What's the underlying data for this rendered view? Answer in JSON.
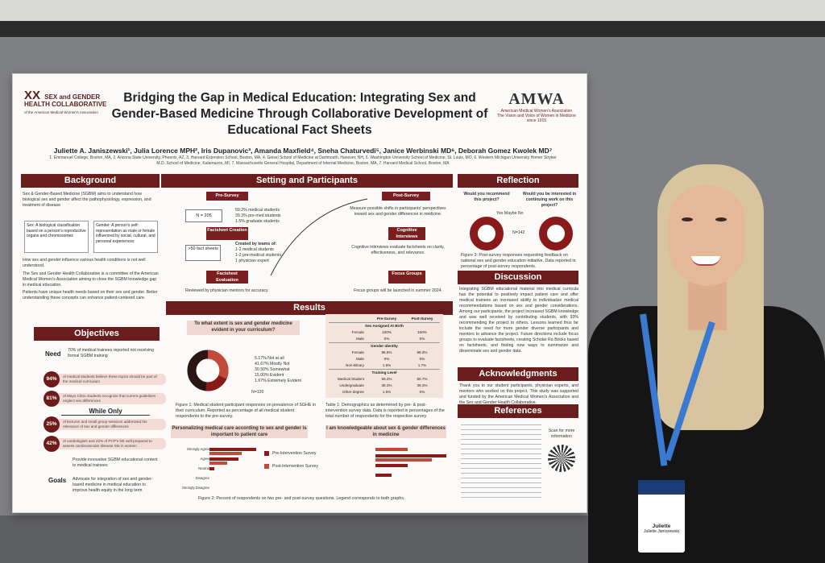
{
  "poster": {
    "logo_left": {
      "mark": "XX",
      "line1": "SEX and GENDER",
      "line2": "HEALTH COLLABORATIVE",
      "line3": "of the American Medical Women's Association"
    },
    "logo_right": {
      "name": "AMWA",
      "line1": "American Medical Women's Association",
      "line2": "The Vision and Voice of Women in Medicine since 1915"
    },
    "title": "Bridging the Gap in Medical Education: Integrating Sex and Gender-Based Medicine Through Collaborative Development of Educational Fact Sheets",
    "authors": "Juliette A. Janiszewski¹, Julia Lorence MPH², Iris Dupanovic³, Amanda Maxfield⁴, Sneha Chaturvedi⁵, Janice Werbinski MD⁶, Deborah Gomez Kwolek MD⁷",
    "affiliations": "1. Emmanuel College, Boston, MA, 2. Arizona State University, Phoenix, AZ, 3. Harvard Extension School, Boston, MA, 4. Geisel School of Medicine at Dartmouth, Hanover, NH, 5. Washington University School of Medicine, St. Louis, MO, 6. Western Michigan University Homer Stryker M.D. School of Medicine, Kalamazoo, MI, 7. Massachusetts General Hospital, Department of Internal Medicine, Boston, MA, 7. Harvard Medical School, Boston, MA",
    "background": {
      "heading": "Background",
      "p1": "Sex & Gender-Based Medicine (SGBM) aims to understand how biological sex and gender affect the pathophysiology, expression, and treatment of disease",
      "sex_def": "Sex: A biological classification based on a person's reproductive organs and chromosomes",
      "gender_def": "Gender: A person's self-representation as male or female influenced by social, cultural, and personal experiences",
      "b1": "How sex and gender influence various health conditions is not well understood.",
      "b2": "The Sex and Gender Health Collaborative is a committee of the American Medical Women's Association aiming to close the SGBM knowledge gap in medical education.",
      "b3": "Patients have unique health needs based on their sex and gender. Better understanding these concepts can enhance patient-centered care."
    },
    "objectives": {
      "heading": "Objectives",
      "need_label": "Need",
      "need_text": "70% of medical trainees reported not receiving formal SGBM training",
      "stats": [
        {
          "value": "94%",
          "text": "of medical students believe these topics should be part of the medical curriculum"
        },
        {
          "value": "81%",
          "text": "of Mayo Clinic students recognize that current guidelines neglect sex differences"
        }
      ],
      "while_only": "While Only",
      "stats2": [
        {
          "value": "25%",
          "text": "of lectures and small group sessions addressed the relevance of sex and gender differences"
        },
        {
          "value": "42%",
          "text": "of cardiologists and 22% of PCP's felt well-prepared to assess cardiovascular disease risk in women"
        }
      ],
      "goals_label": "Goals",
      "goal1": "Provide innovative SGBM educational content to medical trainees",
      "goal2": "Advocate for integration of sex and gender-based medicine in medical education to improve health equity in the long term"
    },
    "setting": {
      "heading": "Setting and Participants",
      "pre_survey": "Pre-Survey",
      "n": "N = 205",
      "pre_stats": [
        "59.2% medical students",
        "39.3% pre-med students",
        "1.5% graduate students"
      ],
      "factsheet_creation": "Factsheet Creation",
      "fact_sheets": ">50 fact sheets",
      "teams_title": "Created by teams of:",
      "teams": [
        "1-2 medical students",
        "1-2 pre-medical students",
        "1 physician expert"
      ],
      "factsheet_eval": "Factsheet Evaluation",
      "reviewed": "Reviewed by physician mentors for accuracy.",
      "post_survey": "Post-Survey",
      "post_text": "Measure possible shifts in participants' perspectives toward sex and gender differences in medicine.",
      "cognitive": "Cognitive Interviews",
      "cognitive_text": "Cognitive interviews evaluate factsheets on clarity, effectiveness, and relevance.",
      "focus": "Focus Groups",
      "focus_text": "Focus groups will be launched in summer 2024."
    },
    "results": {
      "heading": "Results",
      "q1": "To what extent is sex and gender medicine evident in your curriculum?",
      "legend": [
        "5.17% Not at all",
        "41.67% Mostly Not",
        "30.50% Somewhat",
        "15.00% Evident",
        "1.67% Extremely Evident"
      ],
      "n120": "N=120",
      "fig1": "Figure 1: Medical student participant responses on prevalence of SGHE in their curriculum. Reported as percentage of all medical student respondents to the pre-survey.",
      "table_head": [
        "",
        "Pre-Survey",
        "Post-Survey"
      ],
      "groups": [
        {
          "name": "Sex Assigned At Birth",
          "rows": [
            [
              "Female",
              "100%",
              "100%"
            ],
            [
              "Male",
              "0%",
              "0%"
            ]
          ]
        },
        {
          "name": "Gender Identity",
          "rows": [
            [
              "Female",
              "98.5%",
              "98.3%"
            ],
            [
              "Male",
              "0%",
              "0%"
            ],
            [
              "Non-Binary",
              "1.5%",
              "1.7%"
            ]
          ]
        },
        {
          "name": "Training Level",
          "rows": [
            [
              "Medical Student",
              "59.2%",
              "60.7%"
            ],
            [
              "Undergraduate",
              "39.3%",
              "39.3%"
            ],
            [
              "Other degree",
              "1.5%",
              "0%"
            ]
          ]
        }
      ],
      "table1": "Table 1: Demographics as determined by pre- & post-intervention survey data. Data is reported in percentages of the total number of respondents for the respective survey.",
      "q2": "Personalizing medical care according to sex and gender is important to patient care",
      "q3": "I am knowledgeable about sex & gender differences in medicine",
      "likert": [
        "Strongly Agree",
        "Agree",
        "Neutral",
        "Disagree",
        "Strongly Disagree"
      ],
      "pre_label": "Pre-Intervention Survey",
      "post_label": "Post-Intervention Survey",
      "fig2": "Figure 2: Percent of respondents on two pre- and post-survey questions. Legend corresponds to both graphs."
    },
    "reflection": {
      "heading": "Reflection",
      "q1": "Would you recommend this project?",
      "q2": "Would you be interested in continuing work on this project?",
      "legend": "Yes  Maybe  No",
      "n": "N=142",
      "fig3": "Figure 3: Post-survey responses requesting feedback on national sex and gender education initiative. Data reported in percentage of post-survey respondents."
    },
    "discussion": {
      "heading": "Discussion",
      "text": "Integrating SGBM educational material into medical curricula has the potential to positively impact patient care and offer medical trainees an increased ability to individualize medical recommendations based on sex and gender considerations. Among our participants, the project increased SGBM knowledge and was well received by contributing students, with 93% recommending the project to others. Lessons learned thus far include the need for more gender diverse participants and mentors to advance the project. Future directions include focus groups to evaluate factsheets, creating Scholar Ra Bricks based on factsheets, and finding new ways to summarize and disseminate sex and gender data."
    },
    "acknowledgments": {
      "heading": "Acknowledgments",
      "text": "Thank you to our student participants, physician experts, and mentors who worked on this project. This study was supported and funded by the American Medical Women's Association and the Sex and Gender Health Collaborative."
    },
    "references": {
      "heading": "References",
      "scan": "Scan for more information"
    }
  },
  "badge": {
    "name": "Juliette",
    "full": "Juliette Janiszewski"
  }
}
